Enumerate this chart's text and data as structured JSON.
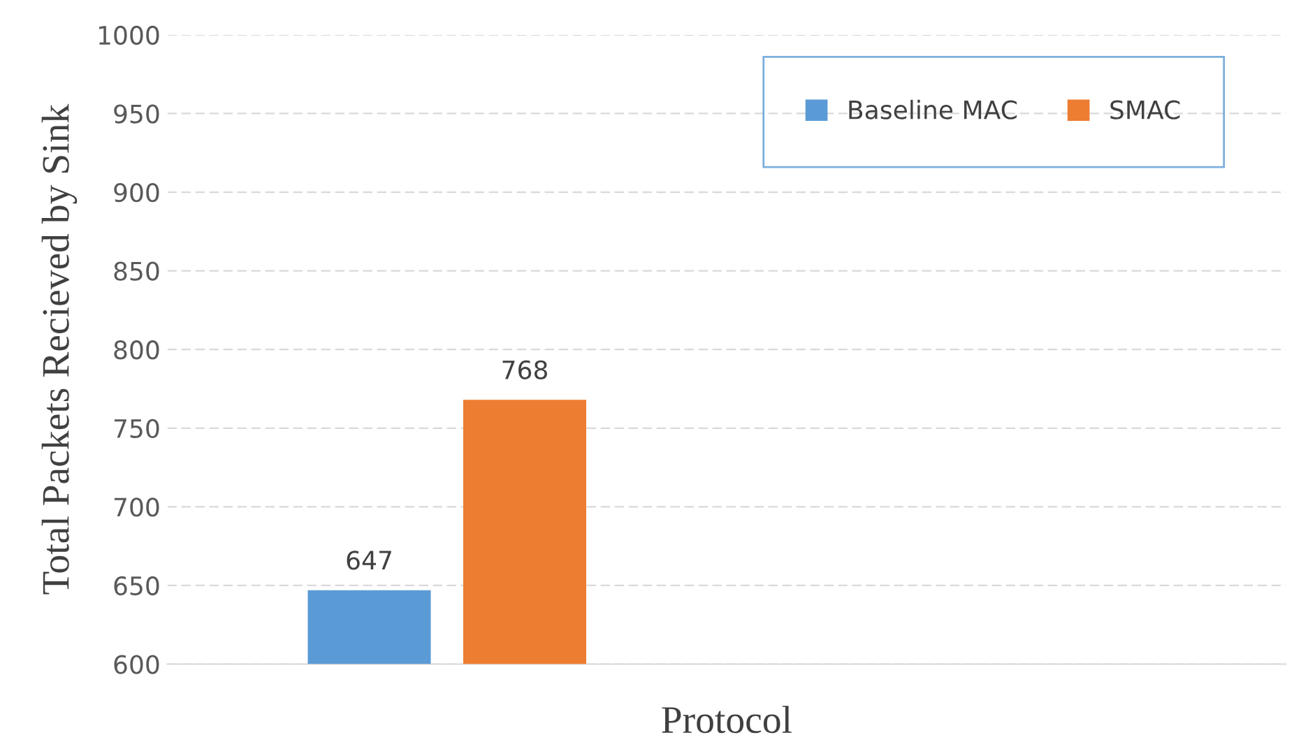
{
  "chart_data": {
    "type": "bar",
    "xlabel": "Protocol",
    "ylabel": "Total Packets Recieved by Sink",
    "categories": [
      null,
      null
    ],
    "series": [
      {
        "name": "Baseline MAC",
        "color": "#5b9bd5",
        "values": [
          647,
          null
        ]
      },
      {
        "name": "SMAC",
        "color": "#ed7d31",
        "values": [
          768,
          null
        ]
      }
    ],
    "ylim": [
      600,
      1000
    ],
    "yticks": [
      600,
      650,
      700,
      750,
      800,
      850,
      900,
      950,
      1000
    ],
    "grid": "y",
    "legend": "top right",
    "data_labels": true
  }
}
